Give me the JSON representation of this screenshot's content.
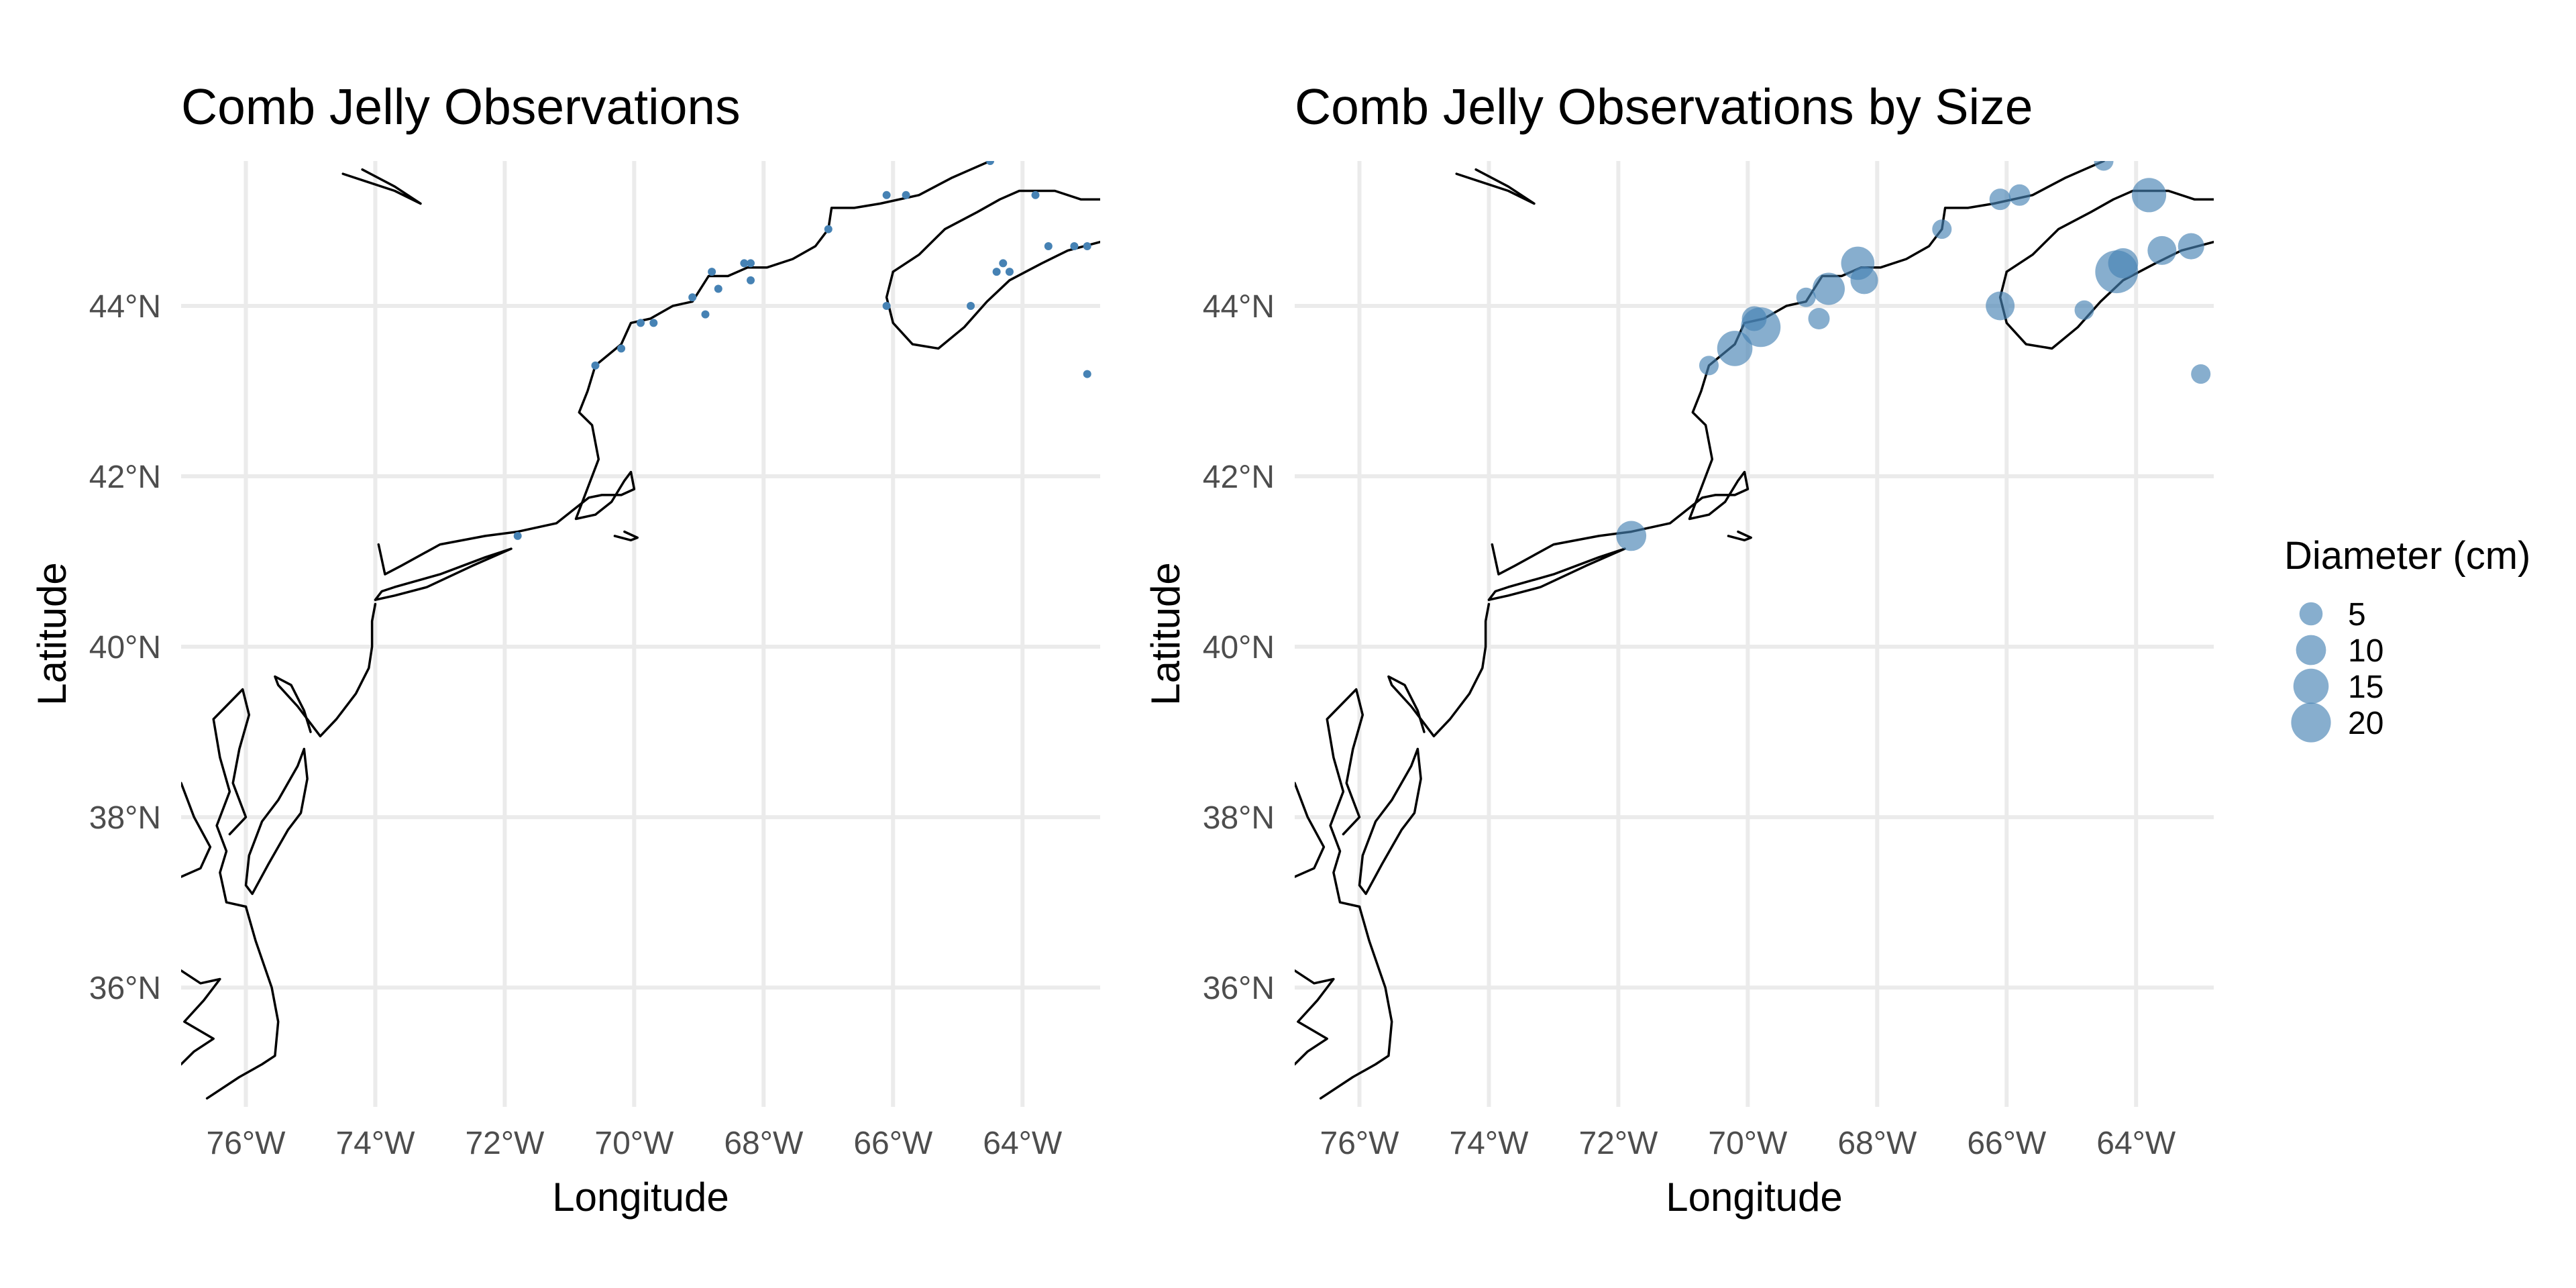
{
  "chart_data": [
    {
      "type": "scatter",
      "title": "Comb Jelly Observations",
      "xlabel": "Longitude",
      "ylabel": "Latitude",
      "xlim": [
        -77.0,
        -62.8
      ],
      "ylim": [
        34.6,
        45.7
      ],
      "x_ticks": [
        -76,
        -74,
        -72,
        -70,
        -68,
        -66,
        -64
      ],
      "x_tick_labels": [
        "76°W",
        "74°W",
        "72°W",
        "70°W",
        "68°W",
        "66°W",
        "64°W"
      ],
      "y_ticks": [
        36,
        38,
        40,
        42,
        44
      ],
      "y_tick_labels": [
        "36°N",
        "38°N",
        "40°N",
        "42°N",
        "44°N"
      ],
      "grid": true,
      "point_color": "#4682b4",
      "basemap": "coastline",
      "points": [
        {
          "lon": -71.8,
          "lat": 41.3
        },
        {
          "lon": -70.6,
          "lat": 43.3
        },
        {
          "lon": -70.2,
          "lat": 43.5
        },
        {
          "lon": -69.9,
          "lat": 43.8
        },
        {
          "lon": -69.7,
          "lat": 43.8
        },
        {
          "lon": -69.1,
          "lat": 44.1
        },
        {
          "lon": -68.9,
          "lat": 43.9
        },
        {
          "lon": -68.8,
          "lat": 44.4
        },
        {
          "lon": -68.7,
          "lat": 44.2
        },
        {
          "lon": -68.3,
          "lat": 44.5
        },
        {
          "lon": -68.2,
          "lat": 44.3
        },
        {
          "lon": -68.2,
          "lat": 44.5
        },
        {
          "lon": -67.0,
          "lat": 44.9
        },
        {
          "lon": -66.1,
          "lat": 45.3
        },
        {
          "lon": -65.8,
          "lat": 45.3
        },
        {
          "lon": -66.1,
          "lat": 44.0
        },
        {
          "lon": -64.8,
          "lat": 44.0
        },
        {
          "lon": -64.4,
          "lat": 44.4
        },
        {
          "lon": -64.3,
          "lat": 44.5
        },
        {
          "lon": -64.2,
          "lat": 44.4
        },
        {
          "lon": -64.5,
          "lat": 45.7
        },
        {
          "lon": -63.8,
          "lat": 45.3
        },
        {
          "lon": -63.6,
          "lat": 44.7
        },
        {
          "lon": -63.2,
          "lat": 44.7
        },
        {
          "lon": -63.0,
          "lat": 44.7
        },
        {
          "lon": -63.0,
          "lat": 43.2
        }
      ]
    },
    {
      "type": "scatter",
      "title": "Comb Jelly Observations by Size",
      "xlabel": "Longitude",
      "ylabel": "Latitude",
      "xlim": [
        -77.0,
        -62.8
      ],
      "ylim": [
        34.6,
        45.7
      ],
      "x_ticks": [
        -76,
        -74,
        -72,
        -70,
        -68,
        -66,
        -64
      ],
      "x_tick_labels": [
        "76°W",
        "74°W",
        "72°W",
        "70°W",
        "68°W",
        "66°W",
        "64°W"
      ],
      "y_ticks": [
        36,
        38,
        40,
        42,
        44
      ],
      "y_tick_labels": [
        "36°N",
        "38°N",
        "40°N",
        "42°N",
        "44°N"
      ],
      "grid": true,
      "point_color": "#4682b4",
      "point_opacity": 0.65,
      "basemap": "coastline",
      "size_legend": {
        "title": "Diameter (cm)",
        "placement": "right",
        "values": [
          5,
          10,
          15,
          20
        ],
        "labels": [
          "5",
          "10",
          "15",
          "20"
        ]
      },
      "points": [
        {
          "lon": -71.8,
          "lat": 41.3,
          "diameter": 10
        },
        {
          "lon": -70.6,
          "lat": 43.3,
          "diameter": 3
        },
        {
          "lon": -70.2,
          "lat": 43.5,
          "diameter": 15
        },
        {
          "lon": -69.8,
          "lat": 43.75,
          "diameter": 20
        },
        {
          "lon": -69.9,
          "lat": 43.85,
          "diameter": 6
        },
        {
          "lon": -69.1,
          "lat": 44.1,
          "diameter": 3
        },
        {
          "lon": -68.9,
          "lat": 43.85,
          "diameter": 4
        },
        {
          "lon": -68.75,
          "lat": 44.2,
          "diameter": 12
        },
        {
          "lon": -68.3,
          "lat": 44.5,
          "diameter": 13
        },
        {
          "lon": -68.2,
          "lat": 44.3,
          "diameter": 8
        },
        {
          "lon": -67.0,
          "lat": 44.9,
          "diameter": 3
        },
        {
          "lon": -66.1,
          "lat": 45.25,
          "diameter": 4
        },
        {
          "lon": -65.8,
          "lat": 45.3,
          "diameter": 4
        },
        {
          "lon": -66.1,
          "lat": 44.0,
          "diameter": 9
        },
        {
          "lon": -64.8,
          "lat": 43.95,
          "diameter": 3
        },
        {
          "lon": -64.3,
          "lat": 44.4,
          "diameter": 24
        },
        {
          "lon": -64.2,
          "lat": 44.5,
          "diameter": 10
        },
        {
          "lon": -64.5,
          "lat": 45.7,
          "diameter": 3
        },
        {
          "lon": -63.8,
          "lat": 45.3,
          "diameter": 14
        },
        {
          "lon": -63.6,
          "lat": 44.65,
          "diameter": 9
        },
        {
          "lon": -63.15,
          "lat": 44.7,
          "diameter": 7
        },
        {
          "lon": -63.0,
          "lat": 43.2,
          "diameter": 3
        }
      ]
    }
  ]
}
